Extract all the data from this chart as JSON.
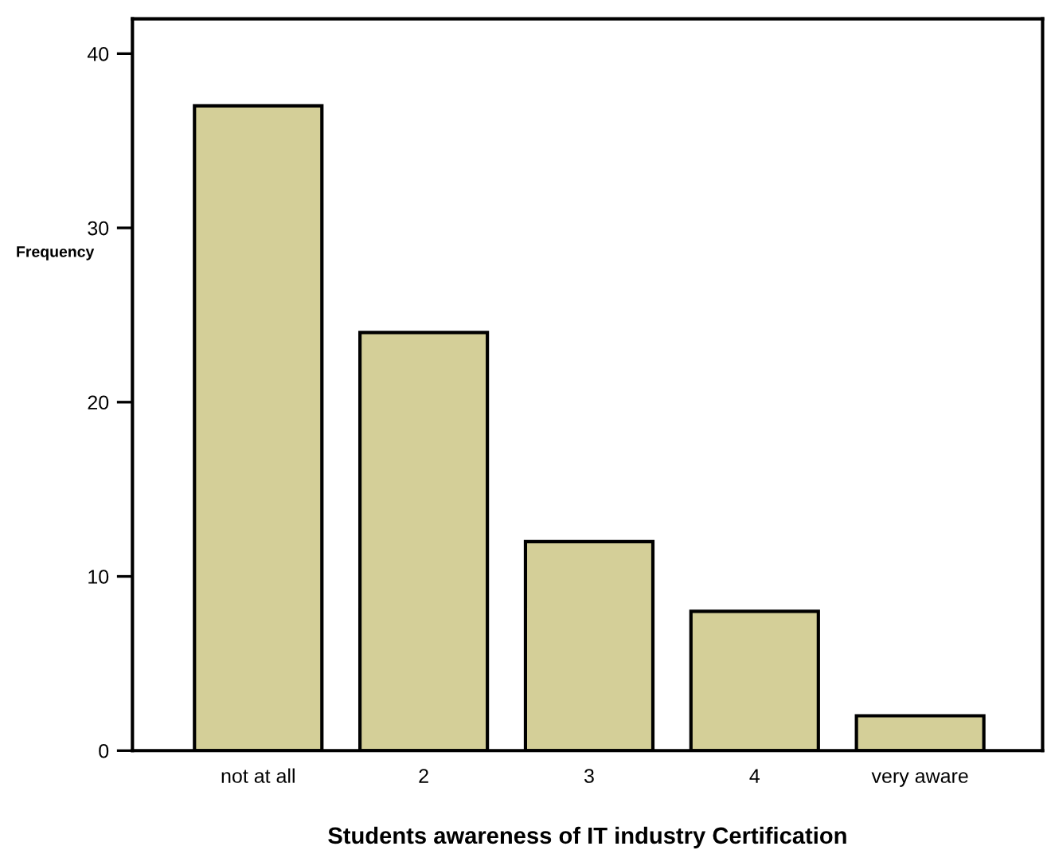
{
  "chart_data": {
    "type": "bar",
    "xlabel": "Students awareness of IT industry Certification",
    "ylabel": "Frequency",
    "categories": [
      "not at all",
      "2",
      "3",
      "4",
      "very aware"
    ],
    "values": [
      37,
      24,
      12,
      8,
      2
    ],
    "color": "#d4cf98",
    "ylim": [
      0,
      42
    ],
    "yticks": [
      0,
      10,
      20,
      30,
      40
    ],
    "grid": false,
    "legend": false
  }
}
